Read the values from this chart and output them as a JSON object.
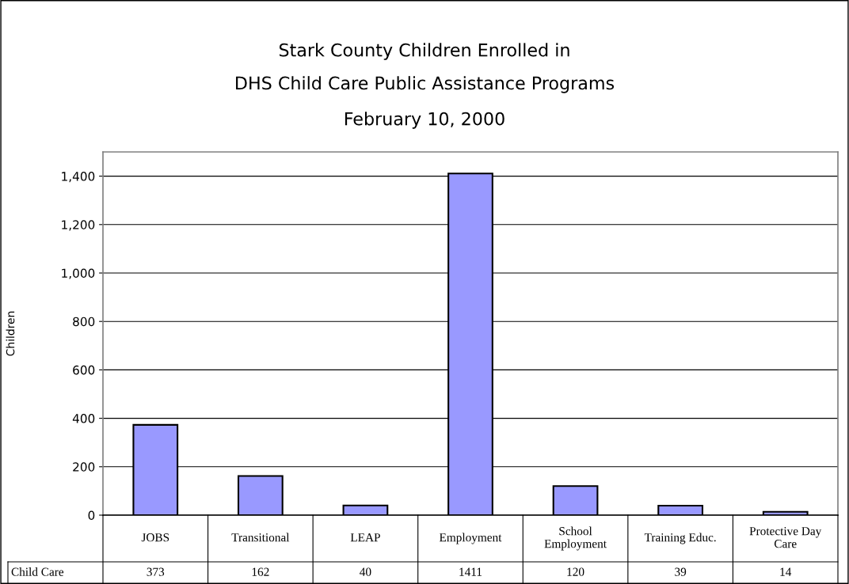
{
  "chart_data": {
    "type": "bar",
    "title": "Stark County Children Enrolled in\nDHS Child Care Public Assistance Programs",
    "subtitle": "February 10, 2000",
    "ylabel": "Children",
    "categories": [
      "JOBS",
      "Transitional",
      "LEAP",
      "Employment",
      "School Employment",
      "Training Educ.",
      "Protective Day Care"
    ],
    "series": [
      {
        "name": "Child Care",
        "color": "#9999ff",
        "values": [
          373,
          162,
          40,
          1411,
          120,
          39,
          14
        ]
      }
    ],
    "ylim": [
      0,
      1500
    ],
    "yticks": [
      0,
      {
        "value": 200,
        "label": "200"
      },
      {
        "value": 400,
        "label": "400"
      },
      {
        "value": 600,
        "label": "600"
      },
      {
        "value": 800,
        "label": "800"
      },
      {
        "value": 1000,
        "label": "1,000"
      },
      {
        "value": 1200,
        "label": "1,200"
      },
      {
        "value": 1400,
        "label": "1,400"
      }
    ],
    "grid": "y",
    "data_labels": true,
    "legend": "bottom"
  }
}
